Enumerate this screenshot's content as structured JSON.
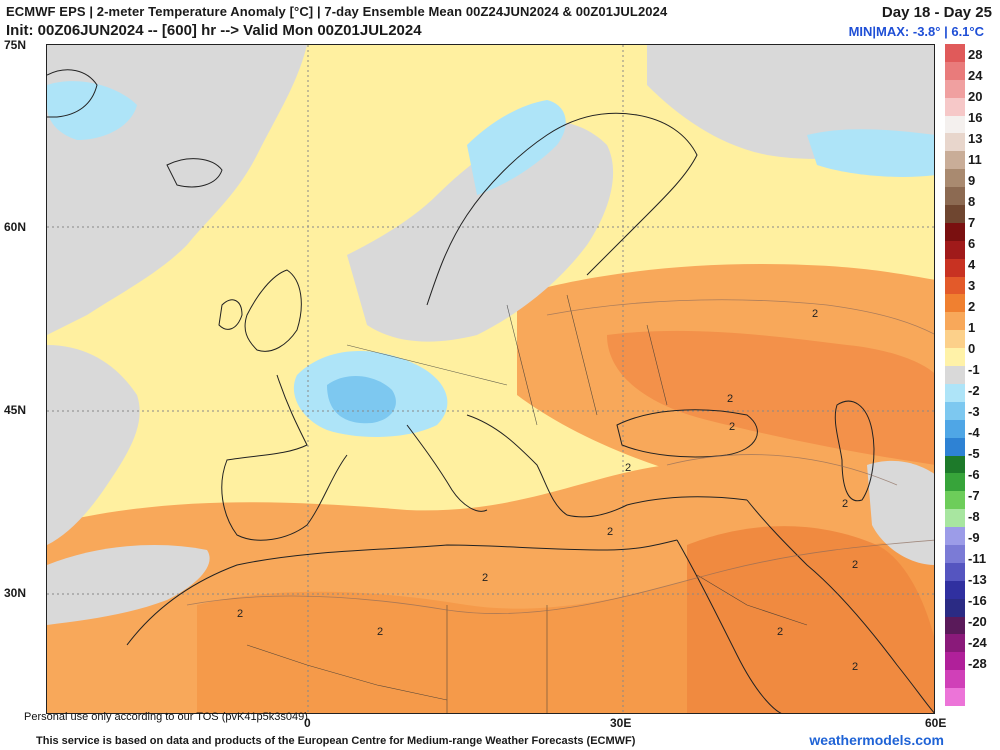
{
  "header": {
    "title": "ECMWF EPS | 2-meter Temperature Anomaly [°C] | 7-day Ensemble Mean 00Z24JUN2024 & 00Z01JUL2024",
    "init": "Init: 00Z06JUN2024 -- [600] hr --> Valid Mon 00Z01JUL2024",
    "period": "Day 18 - Day 25",
    "minmax": "MIN|MAX: -3.8° | 6.1°C"
  },
  "axes": {
    "lat_labels": [
      "75N",
      "60N",
      "45N",
      "30N"
    ],
    "lon_labels": [
      "0",
      "30E",
      "60E"
    ]
  },
  "map_labels": {
    "contour_values": [
      "2",
      "2",
      "2",
      "2",
      "2",
      "2",
      "2",
      "2",
      "2",
      "2",
      "2",
      "2"
    ]
  },
  "colorbar": {
    "labels": [
      "28",
      "24",
      "20",
      "16",
      "13",
      "11",
      "9",
      "8",
      "7",
      "6",
      "4",
      "3",
      "2",
      "1",
      "0",
      "-1",
      "-2",
      "-3",
      "-4",
      "-5",
      "-6",
      "-7",
      "-8",
      "-9",
      "-11",
      "-13",
      "-16",
      "-20",
      "-24",
      "-28"
    ],
    "colors": [
      "#e05a5a",
      "#e97b7b",
      "#f0a0a0",
      "#f6c8c8",
      "#f4f0ee",
      "#e8d6cc",
      "#c9ad98",
      "#a98a70",
      "#8c6a52",
      "#6f4630",
      "#7a1010",
      "#a01a1a",
      "#c83222",
      "#e35a2a",
      "#f08030",
      "#f8a85a",
      "#fcd08a",
      "#fff2a8",
      "#d9d9d9",
      "#aee4f8",
      "#7dc8f0",
      "#4fa6e6",
      "#2e82d4",
      "#1d7a2a",
      "#37a43a",
      "#6dcd5a",
      "#a8e6a0",
      "#9c9ce8",
      "#7b7bd6",
      "#5555c0",
      "#3030a0",
      "#2b2b84",
      "#5a1a5a",
      "#8a1a7a",
      "#b0209a",
      "#d040b8",
      "#ec74d8"
    ]
  },
  "footer": {
    "personal": "Personal use only according to our TOS (pvK41p5k3s049)",
    "service": "This service is based on data and products of the European Centre for Medium-range Weather Forecasts (ECMWF)",
    "brand": "weathermodels.com"
  }
}
